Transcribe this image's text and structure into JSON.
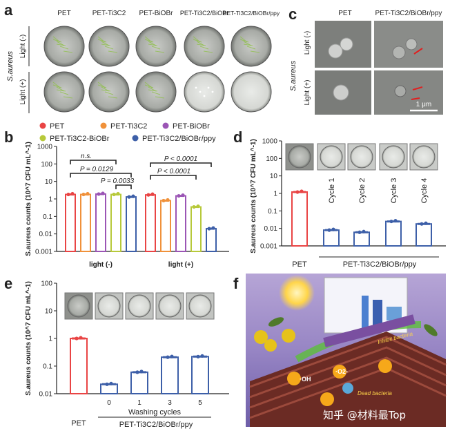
{
  "panels": {
    "a": "a",
    "b": "b",
    "c": "c",
    "d": "d",
    "e": "e",
    "f": "f"
  },
  "panel_a": {
    "columns": [
      "PET",
      "PET-Ti3C2",
      "PET-BiOBr",
      "PET-Ti3C2/BiOBr",
      "PET-Ti3C2/BiOBr/ppy"
    ],
    "row_title": "S.aureus",
    "rows": [
      "Light (-)",
      "Light (+)"
    ]
  },
  "panel_c": {
    "columns": [
      "PET",
      "PET-Ti3C2/BiOBr/ppy"
    ],
    "row_title": "S.aureus",
    "rows": [
      "Light (-)",
      "Light (+)"
    ],
    "scale_bar": "1 μm"
  },
  "panel_f": {
    "watermark": "知乎 @材料最Top",
    "labels": [
      "Inhibit bacteria",
      "Dead bacteria",
      "·OH",
      "·O2-"
    ]
  },
  "colors": {
    "red": "#e94444",
    "orange": "#f0913a",
    "purple": "#9b55b5",
    "yellowgreen": "#b7c93a",
    "blue": "#3d5fa8"
  },
  "chart_data": [
    {
      "panel": "b",
      "type": "bar",
      "ylabel": "S.aureus counts (10^7 CFU mL^-1)",
      "yscale": "log",
      "ylim": [
        0.001,
        1000
      ],
      "yticks": [
        "1000",
        "100",
        "10",
        "1",
        "0.1",
        "0.01",
        "0.001"
      ],
      "categories": [
        "light (-)",
        "light (+)"
      ],
      "legend": [
        "PET",
        "PET-Ti3C2",
        "PET-BiOBr",
        "PET-Ti3C2-BiOBr",
        "PET-Ti3C2/BiOBr/ppy"
      ],
      "series": [
        {
          "name": "PET",
          "values": [
            1.8,
            1.7
          ]
        },
        {
          "name": "PET-Ti3C2",
          "values": [
            1.8,
            0.8
          ]
        },
        {
          "name": "PET-BiOBr",
          "values": [
            1.9,
            1.5
          ]
        },
        {
          "name": "PET-Ti3C2-BiOBr",
          "values": [
            1.8,
            0.35
          ]
        },
        {
          "name": "PET-Ti3C2/BiOBr/ppy",
          "values": [
            1.3,
            0.02
          ]
        }
      ],
      "annotations": [
        "n.s.",
        "P = 0.0129",
        "P = 0.0033",
        "P < 0.0001",
        "P < 0.0001"
      ]
    },
    {
      "panel": "d",
      "type": "bar",
      "ylabel": "S.aureus counts (10^7 CFU mL^-1)",
      "yscale": "log",
      "ylim": [
        0.001,
        1000
      ],
      "yticks": [
        "1000",
        "100",
        "10",
        "1",
        "0.1",
        "0.01",
        "0.001"
      ],
      "categories": [
        "PET",
        "Cycle 1",
        "Cycle 2",
        "Cycle 3",
        "Cycle 4"
      ],
      "values": [
        1.2,
        0.008,
        0.006,
        0.025,
        0.018
      ],
      "xlabel_left": "PET",
      "xlabel_group": "PET-Ti3C2/BiOBr/ppy"
    },
    {
      "panel": "e",
      "type": "bar",
      "ylabel": "S.aureus counts (10^7 CFU mL^-1)",
      "yscale": "log",
      "ylim": [
        0.01,
        100
      ],
      "yticks": [
        "100",
        "10",
        "1",
        "0.1",
        "0.01"
      ],
      "categories": [
        "PET",
        "0",
        "1",
        "3",
        "5"
      ],
      "values": [
        1.0,
        0.022,
        0.06,
        0.21,
        0.22
      ],
      "xlabel_mid": "Washing cycles",
      "xlabel_left": "PET",
      "xlabel_group": "PET-Ti3C2/BiOBr/ppy"
    }
  ]
}
